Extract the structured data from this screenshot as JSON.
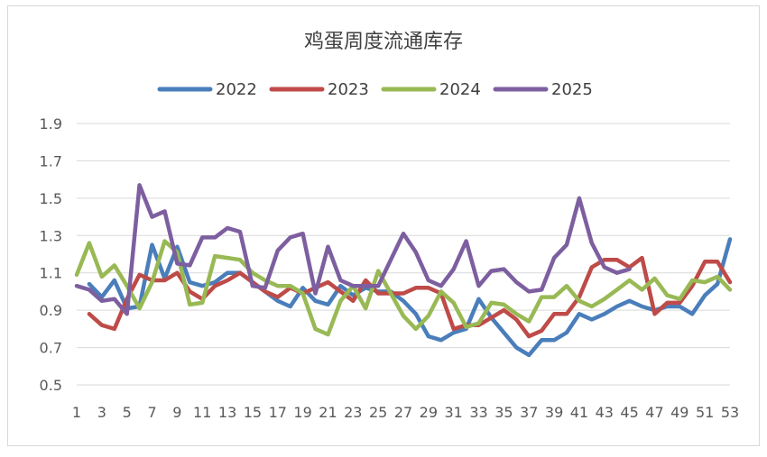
{
  "chart_data": {
    "type": "line",
    "title": "鸡蛋周度流通库存",
    "xlabel": "",
    "ylabel": "",
    "ylim": [
      0.5,
      1.9
    ],
    "yticks": [
      "0.5",
      "0.7",
      "0.9",
      "1.1",
      "1.3",
      "1.5",
      "1.7",
      "1.9"
    ],
    "x": [
      1,
      2,
      3,
      4,
      5,
      6,
      7,
      8,
      9,
      10,
      11,
      12,
      13,
      14,
      15,
      16,
      17,
      18,
      19,
      20,
      21,
      22,
      23,
      24,
      25,
      26,
      27,
      28,
      29,
      30,
      31,
      32,
      33,
      34,
      35,
      36,
      37,
      38,
      39,
      40,
      41,
      42,
      43,
      44,
      45,
      46,
      47,
      48,
      49,
      50,
      51,
      52,
      53
    ],
    "xtick_labels": [
      "1",
      "3",
      "5",
      "7",
      "9",
      "11",
      "13",
      "15",
      "17",
      "19",
      "21",
      "23",
      "25",
      "27",
      "29",
      "31",
      "33",
      "35",
      "37",
      "39",
      "41",
      "43",
      "45",
      "47",
      "49",
      "51",
      "53"
    ],
    "legend_position": "top",
    "grid": true,
    "series": [
      {
        "name": "2022",
        "color": "#4a7ebb",
        "values": [
          null,
          1.04,
          0.97,
          1.06,
          0.91,
          0.92,
          1.25,
          1.07,
          1.24,
          1.05,
          1.03,
          1.05,
          1.1,
          1.1,
          1.05,
          1.0,
          0.95,
          0.92,
          1.02,
          0.95,
          0.93,
          1.03,
          0.98,
          1.02,
          1.0,
          1.0,
          0.95,
          0.88,
          0.76,
          0.74,
          0.78,
          0.8,
          0.96,
          0.86,
          0.78,
          0.7,
          0.66,
          0.74,
          0.74,
          0.78,
          0.88,
          0.85,
          0.88,
          0.92,
          0.95,
          0.92,
          0.9,
          0.92,
          0.92,
          0.88,
          0.98,
          1.04,
          1.28
        ]
      },
      {
        "name": "2023",
        "color": "#be4b48",
        "values": [
          null,
          0.88,
          0.82,
          0.8,
          0.96,
          1.09,
          1.06,
          1.06,
          1.1,
          1.0,
          0.96,
          1.03,
          1.06,
          1.1,
          1.05,
          1.0,
          0.97,
          1.02,
          0.99,
          1.02,
          1.05,
          1.0,
          0.95,
          1.06,
          0.99,
          0.99,
          0.99,
          1.02,
          1.02,
          0.99,
          0.8,
          0.82,
          0.82,
          0.86,
          0.9,
          0.85,
          0.76,
          0.79,
          0.88,
          0.88,
          0.97,
          1.13,
          1.17,
          1.17,
          1.13,
          1.18,
          0.88,
          0.94,
          0.94,
          1.03,
          1.16,
          1.16,
          1.05
        ]
      },
      {
        "name": "2024",
        "color": "#98b954",
        "values": [
          1.09,
          1.26,
          1.08,
          1.14,
          1.03,
          0.91,
          1.05,
          1.27,
          1.21,
          0.93,
          0.94,
          1.19,
          1.18,
          1.17,
          1.1,
          1.06,
          1.03,
          1.03,
          0.99,
          0.8,
          0.77,
          0.95,
          1.03,
          0.91,
          1.11,
          0.99,
          0.87,
          0.8,
          0.87,
          1.0,
          0.94,
          0.81,
          0.83,
          0.94,
          0.93,
          0.88,
          0.84,
          0.97,
          0.97,
          1.03,
          0.95,
          0.92,
          0.96,
          1.01,
          1.06,
          1.01,
          1.07,
          0.98,
          0.96,
          1.06,
          1.05,
          1.08,
          1.01
        ]
      },
      {
        "name": "2025",
        "color": "#7d5fa0",
        "values": [
          1.03,
          1.01,
          0.95,
          0.96,
          0.88,
          1.57,
          1.4,
          1.43,
          1.15,
          1.14,
          1.29,
          1.29,
          1.34,
          1.32,
          1.03,
          1.02,
          1.22,
          1.29,
          1.31,
          0.99,
          1.24,
          1.06,
          1.03,
          1.03,
          1.03,
          1.17,
          1.31,
          1.21,
          1.06,
          1.03,
          1.12,
          1.27,
          1.03,
          1.11,
          1.12,
          1.05,
          1.0,
          1.01,
          1.18,
          1.25,
          1.5,
          1.26,
          1.13,
          1.1,
          1.12,
          null,
          null,
          null,
          null,
          null,
          null,
          null,
          null
        ]
      }
    ]
  }
}
